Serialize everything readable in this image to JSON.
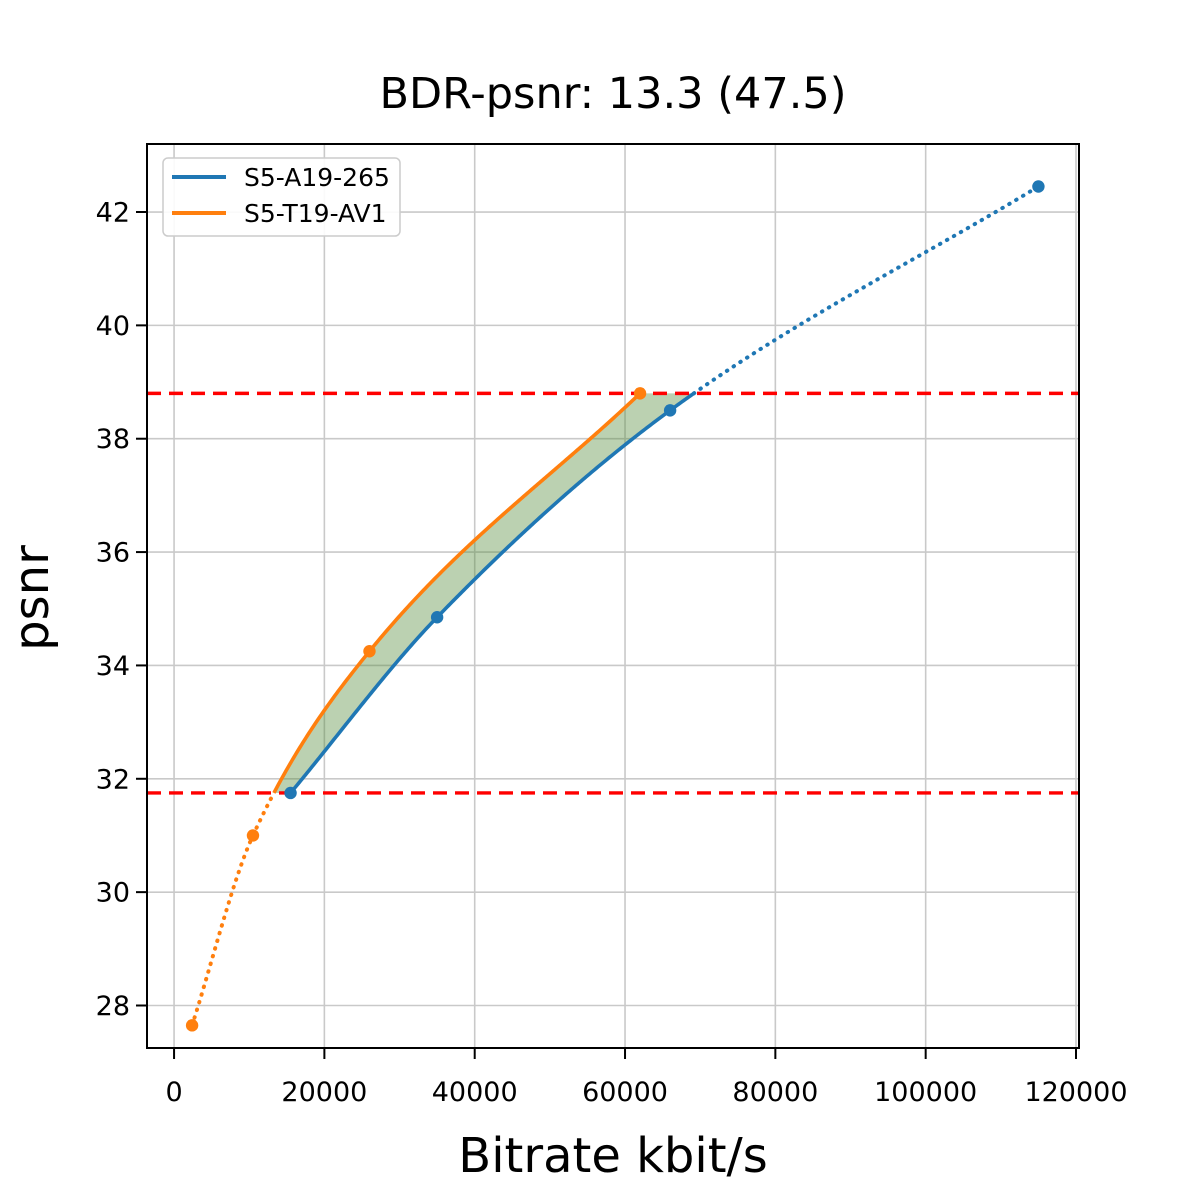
{
  "chart_data": {
    "type": "line",
    "title": "BDR-psnr: 13.3 (47.5)",
    "xlabel": "Bitrate kbit/s",
    "ylabel": "psnr",
    "xlim": [
      -3600,
      120400
    ],
    "ylim": [
      27.25,
      43.2
    ],
    "x_ticks": [
      0,
      20000,
      40000,
      60000,
      80000,
      100000,
      120000
    ],
    "x_tick_labels": [
      "0",
      "20000",
      "40000",
      "60000",
      "80000",
      "100000",
      "120000"
    ],
    "y_ticks": [
      28,
      30,
      32,
      34,
      36,
      38,
      40,
      42
    ],
    "y_tick_labels": [
      "28",
      "30",
      "32",
      "34",
      "36",
      "38",
      "40",
      "42"
    ],
    "grid": true,
    "grid_color": "#c9c9c9",
    "legend_position": "upper left",
    "series": [
      {
        "name": "S5-A19-265",
        "color": "#1f77b4",
        "points": [
          [
            15500,
            31.75
          ],
          [
            35000,
            34.85
          ],
          [
            66000,
            38.5
          ],
          [
            115000,
            42.45
          ]
        ],
        "solid_psnr_range": [
          31.75,
          38.8
        ]
      },
      {
        "name": "S5-T19-AV1",
        "color": "#ff7f0e",
        "points": [
          [
            2400,
            27.65
          ],
          [
            10500,
            31.0
          ],
          [
            26000,
            34.25
          ],
          [
            62000,
            38.8
          ]
        ],
        "solid_psnr_range": [
          31.75,
          38.8
        ]
      }
    ],
    "hlines": [
      {
        "y": 38.8,
        "color": "#ff0000",
        "style": "dashed"
      },
      {
        "y": 31.75,
        "color": "#ff0000",
        "style": "dashed"
      }
    ],
    "shaded_region": {
      "between": [
        "S5-T19-AV1",
        "S5-A19-265"
      ],
      "psnr_range": [
        31.75,
        38.8
      ],
      "color": "#558c3c",
      "alpha": 0.4
    }
  }
}
